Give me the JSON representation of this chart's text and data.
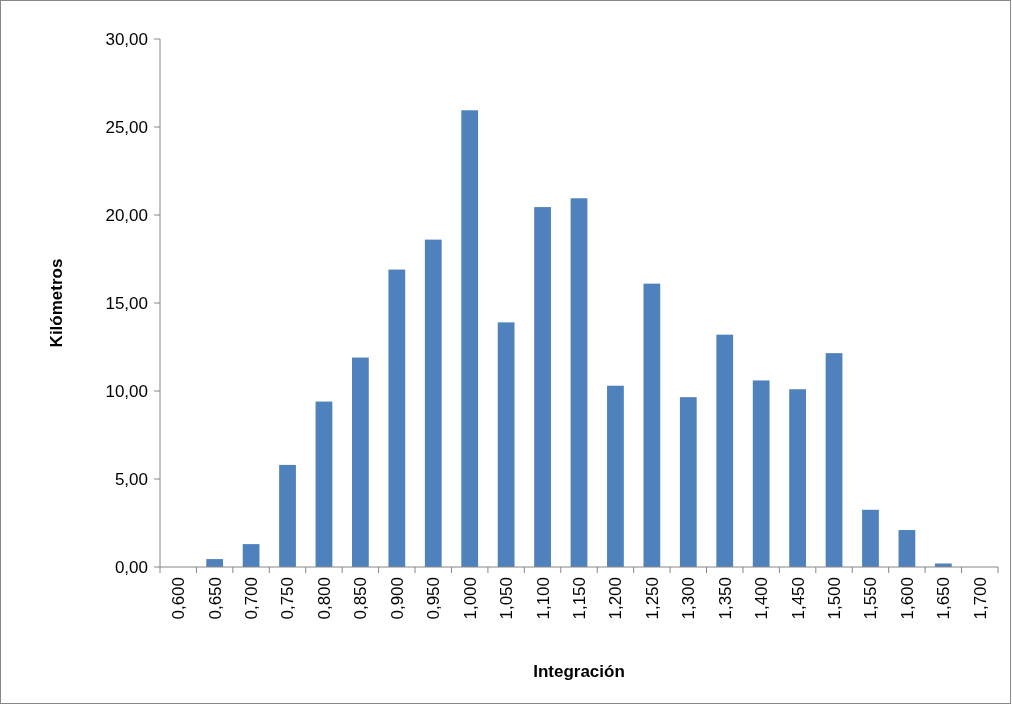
{
  "chart_data": {
    "type": "bar",
    "xlabel": "Integración",
    "ylabel": "Kilómetros",
    "categories": [
      "0,600",
      "0,650",
      "0,700",
      "0,750",
      "0,800",
      "0,850",
      "0,900",
      "0,950",
      "1,000",
      "1,050",
      "1,100",
      "1,150",
      "1,200",
      "1,250",
      "1,300",
      "1,350",
      "1,400",
      "1,450",
      "1,500",
      "1,550",
      "1,600",
      "1,650",
      "1,700"
    ],
    "values": [
      0,
      0.45,
      1.3,
      5.8,
      9.4,
      11.9,
      16.9,
      18.6,
      25.95,
      13.9,
      20.45,
      20.95,
      10.3,
      16.1,
      9.65,
      13.2,
      10.6,
      10.1,
      12.15,
      3.25,
      2.1,
      0.2,
      0
    ],
    "color": "#4f81bd",
    "ylim": [
      0,
      30
    ],
    "yticks": [
      {
        "value": 0,
        "label": "0,00"
      },
      {
        "value": 5,
        "label": "5,00"
      },
      {
        "value": 10,
        "label": "10,00"
      },
      {
        "value": 15,
        "label": "15,00"
      },
      {
        "value": 20,
        "label": "20,00"
      },
      {
        "value": 25,
        "label": "25,00"
      },
      {
        "value": 30,
        "label": "30,00"
      }
    ],
    "grid": false
  }
}
